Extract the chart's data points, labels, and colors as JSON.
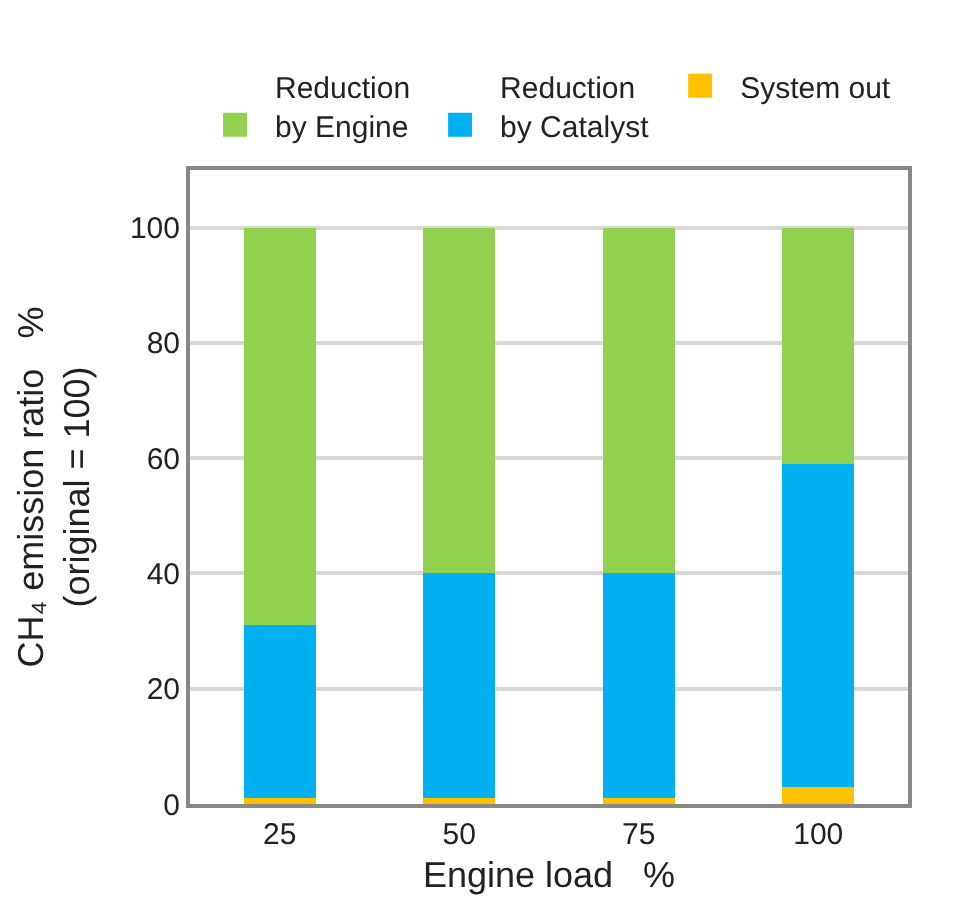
{
  "chart_data": {
    "type": "bar",
    "stacked": true,
    "categories": [
      "25",
      "50",
      "75",
      "100"
    ],
    "series": [
      {
        "name": "System out",
        "color": "#ffc000",
        "values": [
          1,
          1,
          1,
          3
        ]
      },
      {
        "name": "Reduction\nby Catalyst",
        "color": "#00b0f0",
        "values": [
          30,
          39,
          39,
          56
        ]
      },
      {
        "name": "Reduction\nby Engine",
        "color": "#92d050",
        "values": [
          69,
          60,
          60,
          41
        ]
      }
    ],
    "xlabel": "Engine load   %",
    "ylabel": "CH₄ emission ratio   %\n(original = 100)",
    "ylim": [
      0,
      110
    ],
    "yticks": [
      0,
      20,
      40,
      60,
      80,
      100
    ],
    "grid": "y",
    "legend": "top"
  }
}
